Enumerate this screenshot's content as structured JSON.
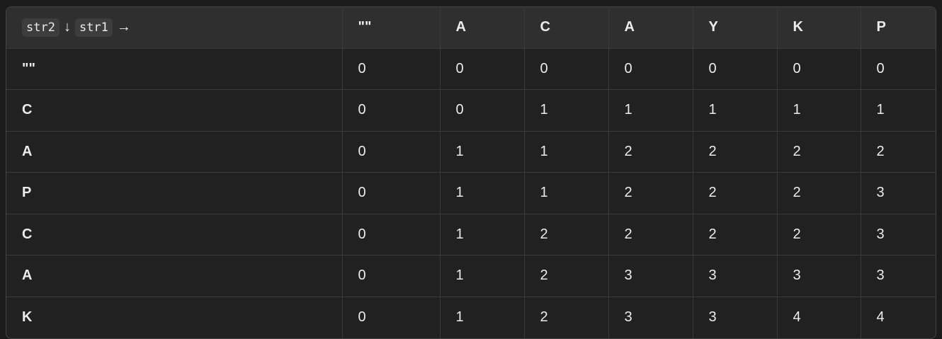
{
  "table": {
    "corner": [
      "str2",
      "↓",
      "str1",
      "→"
    ],
    "columns": [
      "\"\"",
      "A",
      "C",
      "A",
      "Y",
      "K",
      "P"
    ],
    "rows": [
      [
        "\"\"",
        0,
        0,
        0,
        0,
        0,
        0,
        0
      ],
      [
        "C",
        0,
        0,
        1,
        1,
        1,
        1,
        1
      ],
      [
        "A",
        0,
        1,
        1,
        2,
        2,
        2,
        2
      ],
      [
        "P",
        0,
        1,
        1,
        2,
        2,
        2,
        3
      ],
      [
        "C",
        0,
        1,
        2,
        2,
        2,
        2,
        3
      ],
      [
        "A",
        0,
        1,
        2,
        3,
        3,
        3,
        3
      ],
      [
        "K",
        0,
        1,
        2,
        3,
        3,
        4,
        4
      ]
    ]
  }
}
